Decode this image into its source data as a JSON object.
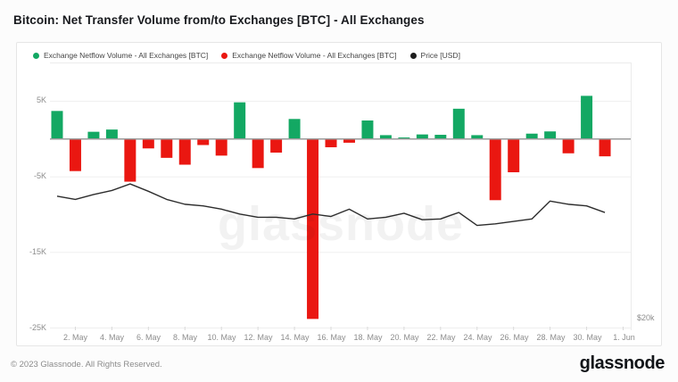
{
  "title": "Bitcoin: Net Transfer Volume from/to Exchanges [BTC] - All Exchanges",
  "watermark": "glassnode",
  "legend": {
    "items": [
      {
        "label": "Exchange Netflow Volume - All Exchanges [BTC]",
        "color": "#13a863"
      },
      {
        "label": "Exchange Netflow Volume - All Exchanges [BTC]",
        "color": "#ea1711"
      },
      {
        "label": "Price [USD]",
        "color": "#1e1e1e"
      }
    ]
  },
  "footer": {
    "copyright": "© 2023 Glassnode. All Rights Reserved.",
    "brand": "glassnode"
  },
  "chart_data": {
    "type": "bar",
    "title": "Bitcoin: Net Transfer Volume from/to Exchanges [BTC] - All Exchanges",
    "legend_position": "top",
    "grid": true,
    "categories": [
      "1. May",
      "2. May",
      "3. May",
      "4. May",
      "5. May",
      "6. May",
      "7. May",
      "8. May",
      "9. May",
      "10. May",
      "11. May",
      "12. May",
      "13. May",
      "14. May",
      "15. May",
      "16. May",
      "17. May",
      "18. May",
      "19. May",
      "20. May",
      "21. May",
      "22. May",
      "23. May",
      "24. May",
      "25. May",
      "26. May",
      "27. May",
      "28. May",
      "29. May",
      "30. May",
      "31. May"
    ],
    "series": [
      {
        "name": "Exchange Netflow Volume - All Exchanges [BTC]",
        "type": "bar",
        "unit": "BTC",
        "axis": "left",
        "positive_color": "#13a863",
        "negative_color": "#ea1711",
        "values": [
          3700,
          -4250,
          950,
          1250,
          -5650,
          -1250,
          -2500,
          -3400,
          -800,
          -2200,
          4850,
          -3850,
          -1800,
          2650,
          -23800,
          -1100,
          -500,
          2450,
          500,
          200,
          600,
          550,
          4000,
          500,
          -8100,
          -4400,
          700,
          1000,
          -1900,
          5700,
          -2300
        ]
      },
      {
        "name": "Price [USD]",
        "type": "line",
        "unit": "USD",
        "axis": "right",
        "color": "#2d2d2d",
        "values": [
          28100,
          27900,
          28200,
          28450,
          28850,
          28400,
          27900,
          27600,
          27500,
          27300,
          27000,
          26800,
          26800,
          26700,
          27000,
          26850,
          27300,
          26700,
          26800,
          27050,
          26650,
          26700,
          27100,
          26300,
          26400,
          26550,
          26700,
          27800,
          27600,
          27500,
          27100
        ]
      }
    ],
    "left_axis": {
      "unit": "BTC",
      "range_top": 10000,
      "range_bottom": -25300,
      "ticks": [
        {
          "label": "5K",
          "value": 5000
        },
        {
          "label": "-5K",
          "value": -5000
        },
        {
          "label": "-15K",
          "value": -15000
        },
        {
          "label": "-25K",
          "value": -25000
        }
      ]
    },
    "right_axis": {
      "unit": "USD",
      "range_top": 36260,
      "range_bottom": 19860,
      "ticks": [
        {
          "label": "$20k",
          "value": 20000
        }
      ]
    },
    "x_ticks": [
      {
        "label": "2. May",
        "day": 2
      },
      {
        "label": "4. May",
        "day": 4
      },
      {
        "label": "6. May",
        "day": 6
      },
      {
        "label": "8. May",
        "day": 8
      },
      {
        "label": "10. May",
        "day": 10
      },
      {
        "label": "12. May",
        "day": 12
      },
      {
        "label": "14. May",
        "day": 14
      },
      {
        "label": "16. May",
        "day": 16
      },
      {
        "label": "18. May",
        "day": 18
      },
      {
        "label": "20. May",
        "day": 20
      },
      {
        "label": "22. May",
        "day": 22
      },
      {
        "label": "24. May",
        "day": 24
      },
      {
        "label": "26. May",
        "day": 26
      },
      {
        "label": "28. May",
        "day": 28
      },
      {
        "label": "30. May",
        "day": 30
      },
      {
        "label": "1. Jun",
        "day": 32
      }
    ]
  }
}
